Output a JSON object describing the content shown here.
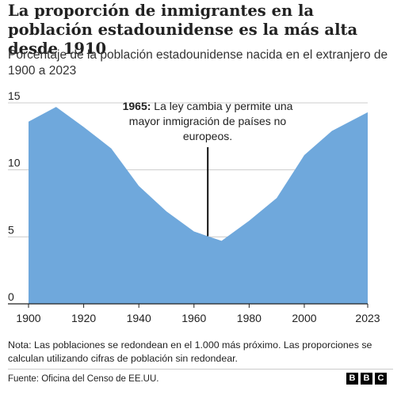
{
  "title": "La proporción de inmigrantes en la población estadounidense es la más alta desde 1910",
  "subtitle": "Porcentaje de la población estadounidense nacida en el extranjero de 1900 a 2023",
  "note": "Nota: Las poblaciones se redondean en el 1.000 más próximo. Las proporciones se calculan utilizando cifras de población sin redondear.",
  "source": "Fuente: Oficina del Censo de EE.UU.",
  "logo": [
    "B",
    "B",
    "C"
  ],
  "chart_data": {
    "type": "area",
    "x": [
      1900,
      1910,
      1920,
      1930,
      1940,
      1950,
      1960,
      1970,
      1980,
      1990,
      2000,
      2010,
      2023
    ],
    "series": [
      {
        "values": [
          13.6,
          14.7,
          13.2,
          11.6,
          8.8,
          6.9,
          5.4,
          4.7,
          6.2,
          7.9,
          11.1,
          12.9,
          14.3
        ]
      }
    ],
    "xlim": [
      1900,
      2023
    ],
    "ylim": [
      0,
      15
    ],
    "x_ticks": [
      "1900",
      "1920",
      "1940",
      "1960",
      "1980",
      "2000",
      "2023"
    ],
    "y_ticks": [
      "0",
      "5",
      "10",
      "15"
    ],
    "grid": "horizontal",
    "color": "#6fa8dc",
    "annotation": {
      "x": 1965,
      "year": "1965:",
      "lines": [
        "La ley cambia y permite una",
        "mayor inmigración de países no",
        "europeos."
      ]
    }
  }
}
